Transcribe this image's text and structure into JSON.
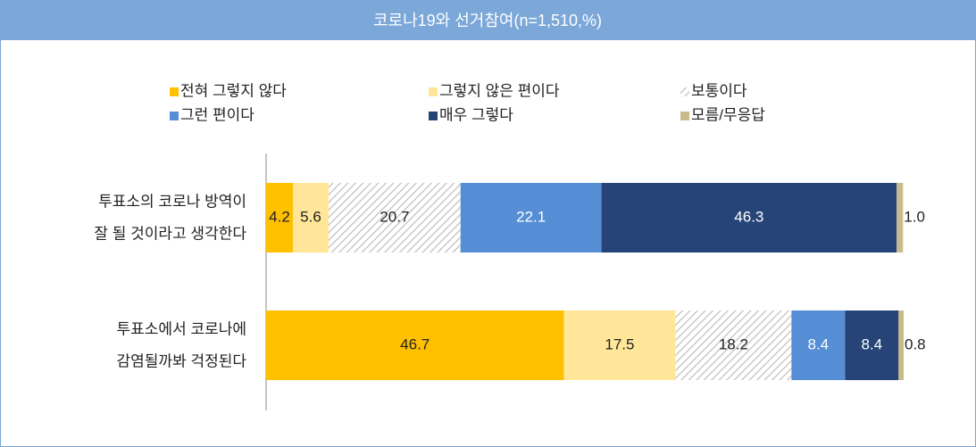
{
  "chart_data": {
    "type": "stacked_barh",
    "title": "코로나19와 선거참여(n=1,510,%)",
    "categories": [
      [
        "투표소의 코로나 방역이",
        "잘 될 것이라고 생각한다"
      ],
      [
        "투표소에서 코로나에",
        "감염될까봐 걱정된다"
      ]
    ],
    "xlim": [
      0,
      100
    ],
    "series": [
      {
        "name": "전혀 그렇지 않다",
        "color": "#ffc000",
        "values": [
          4.2,
          46.7
        ],
        "value_labels": [
          "4.2",
          "46.7"
        ]
      },
      {
        "name": "그렇지 않은 편이다",
        "color": "#ffe699",
        "values": [
          5.6,
          17.5
        ],
        "value_labels": [
          "5.6",
          "17.5"
        ]
      },
      {
        "name": "보통이다",
        "color": "#bfbfbf",
        "fill_pattern": "diagonal",
        "values": [
          20.7,
          18.2
        ],
        "value_labels": [
          "20.7",
          "18.2"
        ]
      },
      {
        "name": "그런 편이다",
        "color": "#558ed5",
        "values": [
          22.1,
          8.4
        ],
        "value_labels": [
          "22.1",
          "8.4"
        ]
      },
      {
        "name": "매우 그렇다",
        "color": "#264478",
        "values": [
          46.3,
          8.4
        ],
        "value_labels": [
          "46.3",
          "8.4"
        ]
      },
      {
        "name": "모름/무응답",
        "color": "#c9bc8c",
        "values": [
          1.0,
          0.8
        ],
        "value_labels": [
          "1.0",
          "0.8"
        ]
      }
    ]
  }
}
